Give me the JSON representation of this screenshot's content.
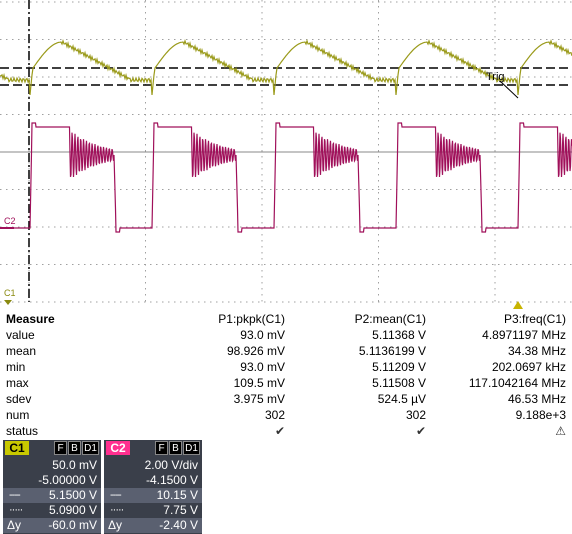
{
  "colors": {
    "ch1": "#9a9a1a",
    "ch2": "#a0105a",
    "ch1_tag_bg": "#c8c800",
    "ch2_tag_bg": "#ff2f8f",
    "grid": "#a0a0a0",
    "trigger_marker": "#c8b400"
  },
  "scope": {
    "trig_label": "Trig",
    "ch2_marker": "C2",
    "ch1_marker": "C1"
  },
  "measure": {
    "title": "Measure",
    "columns": [
      "P1:pkpk(C1)",
      "P2:mean(C1)",
      "P3:freq(C1)"
    ],
    "rows": [
      {
        "label": "value",
        "values": [
          "93.0 mV",
          "5.11368 V",
          "4.8971197 MHz"
        ]
      },
      {
        "label": "mean",
        "values": [
          "98.926 mV",
          "5.1136199 V",
          "34.38 MHz"
        ]
      },
      {
        "label": "min",
        "values": [
          "93.0 mV",
          "5.11209 V",
          "202.0697 kHz"
        ]
      },
      {
        "label": "max",
        "values": [
          "109.5 mV",
          "5.11508 V",
          "117.1042164 MHz"
        ]
      },
      {
        "label": "sdev",
        "values": [
          "3.975 mV",
          "524.5 µV",
          "46.53 MHz"
        ]
      },
      {
        "label": "num",
        "values": [
          "302",
          "302",
          "9.188e+3"
        ]
      },
      {
        "label": "status",
        "values": [
          "✔",
          "✔",
          "⚠"
        ]
      }
    ]
  },
  "descriptors": [
    {
      "tag": "C1",
      "flags": [
        "F",
        "B",
        "D1"
      ],
      "scale": "50.0 mV",
      "offset": "-5.00000 V",
      "cursor1": "5.1500 V",
      "cursor2": "5.0900 V",
      "delta_label": "Δy",
      "delta": "-60.0 mV"
    },
    {
      "tag": "C2",
      "flags": [
        "F",
        "B",
        "D1"
      ],
      "scale": "2.00 V/div",
      "offset": "-4.1500 V",
      "cursor1": "10.15 V",
      "cursor2": "7.75 V",
      "delta_label": "Δy",
      "delta": "-2.40 V"
    }
  ]
}
